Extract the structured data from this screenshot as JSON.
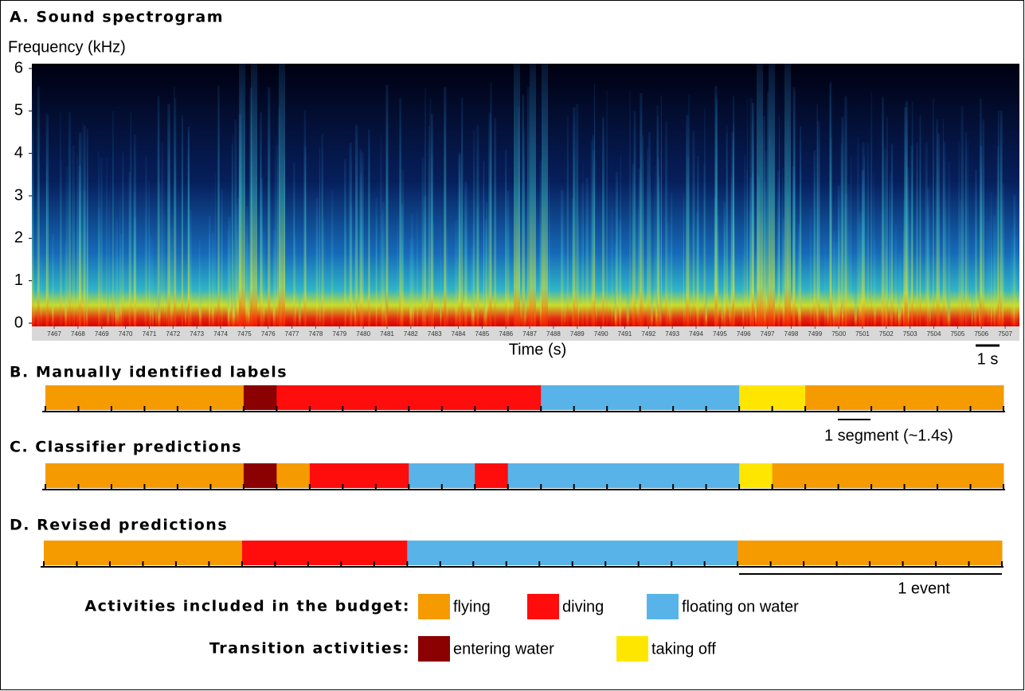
{
  "chart_data": {
    "type": "spectrogram",
    "title": "A. Sound spectrogram",
    "y_label": "Frequency (kHz)",
    "x_label": "Time (s)",
    "ylim": [
      0,
      6
    ],
    "yticks": [
      0,
      1,
      2,
      3,
      4,
      5,
      6
    ],
    "xlim": [
      7466.06,
      7507.6
    ],
    "xticks": [
      7467,
      7468,
      7469,
      7470,
      7471,
      7472,
      7473,
      7474,
      7475,
      7476,
      7477,
      7478,
      7479,
      7480,
      7481,
      7482,
      7483,
      7484,
      7485,
      7486,
      7487,
      7488,
      7489,
      7490,
      7491,
      7492,
      7493,
      7494,
      7495,
      7496,
      7497,
      7498,
      7499,
      7500,
      7501,
      7502,
      7503,
      7504,
      7505,
      7506,
      7507
    ],
    "scale_label": "1 s"
  },
  "panels": [
    {
      "title": "B. Manually identified labels",
      "segments": [
        "flying",
        "flying",
        "flying",
        "flying",
        "flying",
        "flying",
        "entering water",
        "diving",
        "diving",
        "diving",
        "diving",
        "diving",
        "diving",
        "diving",
        "diving",
        "floating on water",
        "floating on water",
        "floating on water",
        "floating on water",
        "floating on water",
        "floating on water",
        "taking off",
        "taking off",
        "flying",
        "flying",
        "flying",
        "flying",
        "flying",
        "flying"
      ],
      "scale_label": "1 segment (~1.4s)"
    },
    {
      "title": "C. Classifier predictions",
      "segments": [
        "flying",
        "flying",
        "flying",
        "flying",
        "flying",
        "flying",
        "entering water",
        "flying",
        "diving",
        "diving",
        "diving",
        "floating on water",
        "floating on water",
        "diving",
        "floating on water",
        "floating on water",
        "floating on water",
        "floating on water",
        "floating on water",
        "floating on water",
        "floating on water",
        "taking off",
        "flying",
        "flying",
        "flying",
        "flying",
        "flying",
        "flying",
        "flying"
      ]
    },
    {
      "title": "D. Revised predictions",
      "segments": [
        "flying",
        "flying",
        "flying",
        "flying",
        "flying",
        "flying",
        "diving",
        "diving",
        "diving",
        "diving",
        "diving",
        "floating on water",
        "floating on water",
        "floating on water",
        "floating on water",
        "floating on water",
        "floating on water",
        "floating on water",
        "floating on water",
        "floating on water",
        "floating on water",
        "flying",
        "flying",
        "flying",
        "flying",
        "flying",
        "flying",
        "flying",
        "flying"
      ],
      "scale_label": "1 event"
    }
  ],
  "legend": [
    {
      "title": "Activities included in the budget:",
      "items": [
        {
          "name": "flying",
          "color": "#f59b00"
        },
        {
          "name": "diving",
          "color": "#ff0d0d"
        },
        {
          "name": "floating on water",
          "color": "#58b4e8"
        }
      ]
    },
    {
      "title": "Transition activities:",
      "items": [
        {
          "name": "entering water",
          "color": "#8b0000"
        },
        {
          "name": "taking off",
          "color": "#ffe600"
        }
      ]
    }
  ]
}
